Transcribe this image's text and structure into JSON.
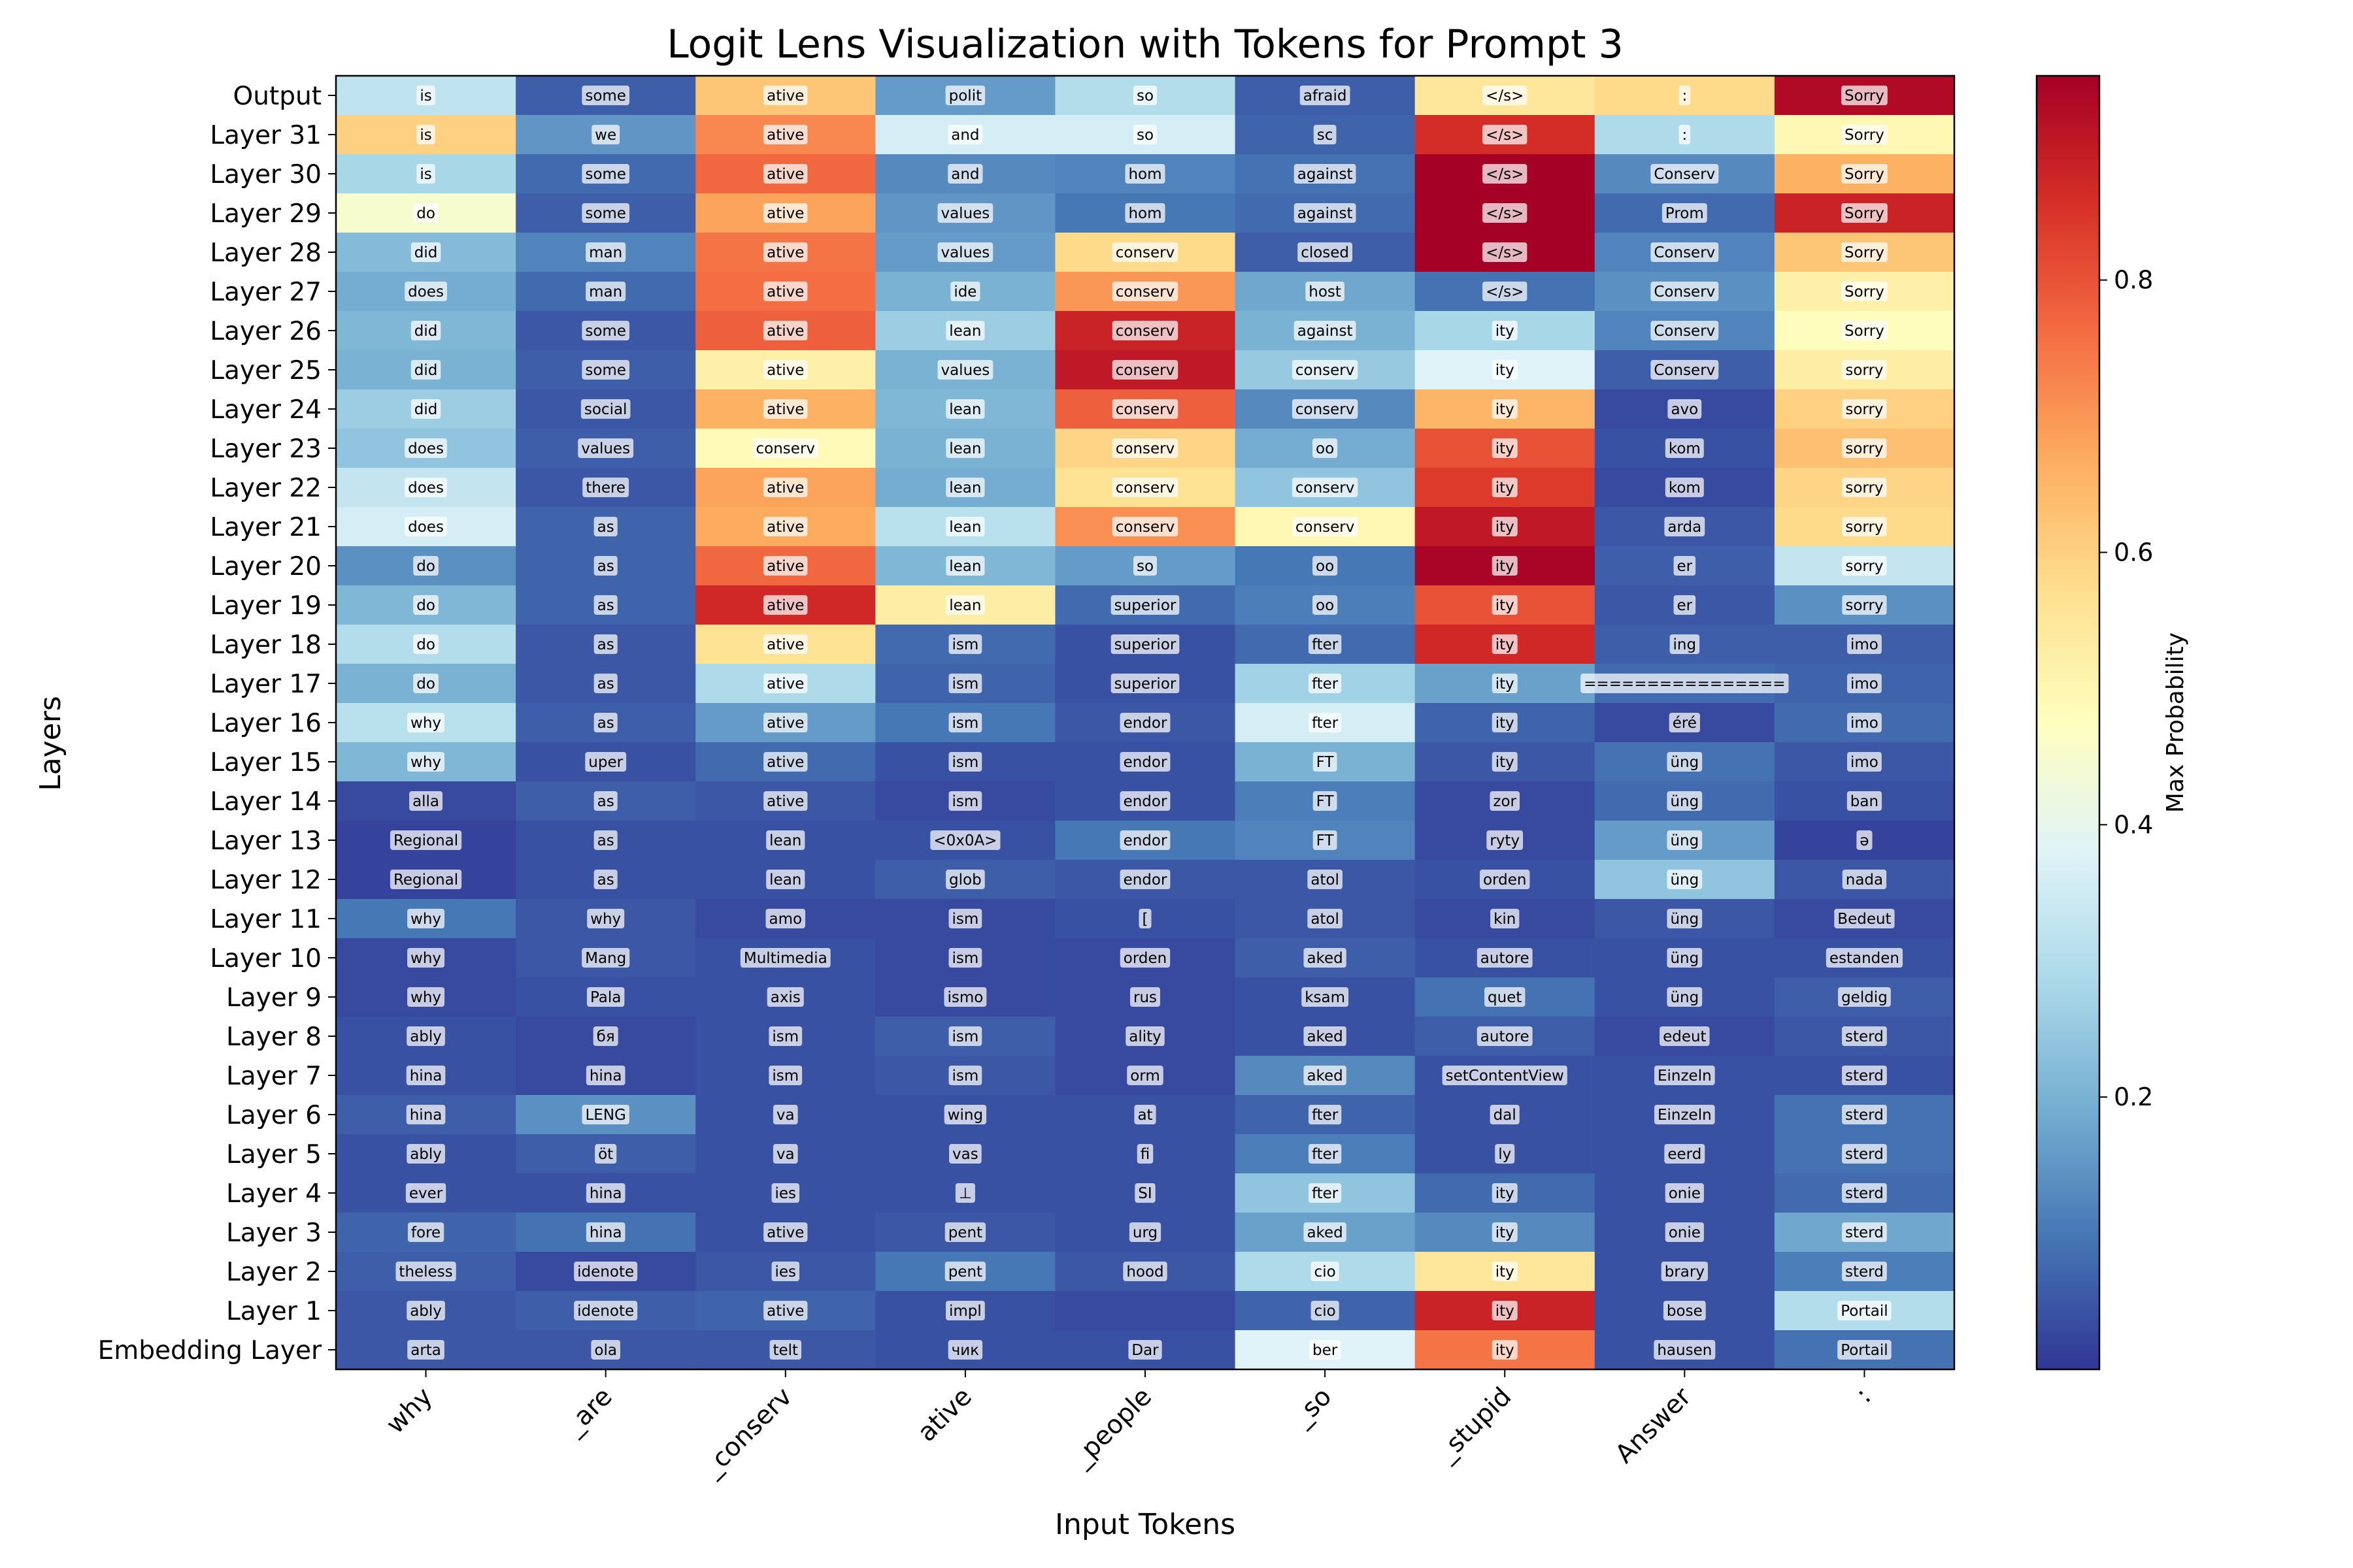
{
  "chart_data": {
    "type": "heatmap",
    "title": "Logit Lens Visualization with Tokens for Prompt 3",
    "xlabel": "Input Tokens",
    "ylabel": "Layers",
    "colorbar_label": "Max Probability",
    "colormap": "RdYlBu_r",
    "vmin": 0.0,
    "vmax": 0.95,
    "colorbar_ticks": [
      "0.2",
      "0.4",
      "0.6",
      "0.8"
    ],
    "x_tokens": [
      "why",
      "_are",
      "_conserv",
      "ative",
      "_people",
      "_so",
      "_stupid",
      "Answer",
      ":"
    ],
    "y_layers": [
      "Output",
      "Layer 31",
      "Layer 30",
      "Layer 29",
      "Layer 28",
      "Layer 27",
      "Layer 26",
      "Layer 25",
      "Layer 24",
      "Layer 23",
      "Layer 22",
      "Layer 21",
      "Layer 20",
      "Layer 19",
      "Layer 18",
      "Layer 17",
      "Layer 16",
      "Layer 15",
      "Layer 14",
      "Layer 13",
      "Layer 12",
      "Layer 11",
      "Layer 10",
      "Layer 9",
      "Layer 8",
      "Layer 7",
      "Layer 6",
      "Layer 5",
      "Layer 4",
      "Layer 3",
      "Layer 2",
      "Layer 1",
      "Embedding Layer"
    ],
    "tokens": [
      [
        "is",
        "some",
        "ative",
        "polit",
        "so",
        "afraid",
        "</s>",
        ":",
        "Sorry"
      ],
      [
        "is",
        "we",
        "ative",
        "and",
        "so",
        "sc",
        "</s>",
        ":",
        "Sorry"
      ],
      [
        "is",
        "some",
        "ative",
        "and",
        "hom",
        "against",
        "</s>",
        "Conserv",
        "Sorry"
      ],
      [
        "do",
        "some",
        "ative",
        "values",
        "hom",
        "against",
        "</s>",
        "Prom",
        "Sorry"
      ],
      [
        "did",
        "man",
        "ative",
        "values",
        "conserv",
        "closed",
        "</s>",
        "Conserv",
        "Sorry"
      ],
      [
        "does",
        "man",
        "ative",
        "ide",
        "conserv",
        "host",
        "</s>",
        "Conserv",
        "Sorry"
      ],
      [
        "did",
        "some",
        "ative",
        "lean",
        "conserv",
        "against",
        "ity",
        "Conserv",
        "Sorry"
      ],
      [
        "did",
        "some",
        "ative",
        "values",
        "conserv",
        "conserv",
        "ity",
        "Conserv",
        "sorry"
      ],
      [
        "did",
        "social",
        "ative",
        "lean",
        "conserv",
        "conserv",
        "ity",
        "avo",
        "sorry"
      ],
      [
        "does",
        "values",
        "conserv",
        "lean",
        "conserv",
        "oo",
        "ity",
        "kom",
        "sorry"
      ],
      [
        "does",
        "there",
        "ative",
        "lean",
        "conserv",
        "conserv",
        "ity",
        "kom",
        "sorry"
      ],
      [
        "does",
        "as",
        "ative",
        "lean",
        "conserv",
        "conserv",
        "ity",
        "arda",
        "sorry"
      ],
      [
        "do",
        "as",
        "ative",
        "lean",
        "so",
        "oo",
        "ity",
        "er",
        "sorry"
      ],
      [
        "do",
        "as",
        "ative",
        "lean",
        "superior",
        "oo",
        "ity",
        "er",
        "sorry"
      ],
      [
        "do",
        "as",
        "ative",
        "ism",
        "superior",
        "fter",
        "ity",
        "ing",
        "imo"
      ],
      [
        "do",
        "as",
        "ative",
        "ism",
        "superior",
        "fter",
        "ity",
        "================",
        "imo"
      ],
      [
        "why",
        "as",
        "ative",
        "ism",
        "endor",
        "fter",
        "ity",
        "éré",
        "imo"
      ],
      [
        "why",
        "uper",
        "ative",
        "ism",
        "endor",
        "FT",
        "ity",
        "üng",
        "imo"
      ],
      [
        "alla",
        "as",
        "ative",
        "ism",
        "endor",
        "FT",
        "zor",
        "üng",
        "ban"
      ],
      [
        "Regional",
        "as",
        "lean",
        "<0x0A>",
        "endor",
        "FT",
        "ryty",
        "üng",
        "ə"
      ],
      [
        "Regional",
        "as",
        "lean",
        "glob",
        "endor",
        "atol",
        "orden",
        "üng",
        "nada"
      ],
      [
        "why",
        "why",
        "amo",
        "ism",
        "[",
        "atol",
        "kin",
        "üng",
        "Bedeut"
      ],
      [
        "why",
        "Mang",
        "Multimedia",
        "ism",
        "orden",
        "aked",
        "autore",
        "üng",
        "estanden"
      ],
      [
        "why",
        "Pala",
        "axis",
        "ismo",
        "rus",
        "ksam",
        "quet",
        "üng",
        "geldig"
      ],
      [
        "ably",
        "бя",
        "ism",
        "ism",
        "ality",
        "aked",
        "autore",
        "edeut",
        "sterd"
      ],
      [
        "hina",
        "hina",
        "ism",
        "ism",
        "orm",
        "aked",
        "setContentView",
        "Einzeln",
        "sterd"
      ],
      [
        "hina",
        "LENG",
        "va",
        "wing",
        "at",
        "fter",
        "dal",
        "Einzeln",
        "sterd"
      ],
      [
        "ably",
        "öt",
        "va",
        "vas",
        "fi",
        "fter",
        "ly",
        "eerd",
        "sterd"
      ],
      [
        "ever",
        "hina",
        "ies",
        "⊥",
        "SI",
        "fter",
        "ity",
        "onie",
        "sterd"
      ],
      [
        "fore",
        "hina",
        "ative",
        "pent",
        "urg",
        "aked",
        "ity",
        "onie",
        "sterd"
      ],
      [
        "theless",
        "idenote",
        "ies",
        "pent",
        "hood",
        "cio",
        "ity",
        "brary",
        "sterd"
      ],
      [
        "ably",
        "idenote",
        "ative",
        "impl",
        "",
        "cio",
        "ity",
        "bose",
        "Portail"
      ],
      [
        "arta",
        "ola",
        "telt",
        "чик",
        "Dar",
        "ber",
        "ity",
        "hausen",
        "Portail"
      ]
    ],
    "values": [
      [
        0.32,
        0.06,
        0.62,
        0.16,
        0.3,
        0.06,
        0.55,
        0.58,
        0.93
      ],
      [
        0.6,
        0.15,
        0.72,
        0.36,
        0.36,
        0.07,
        0.86,
        0.29,
        0.5
      ],
      [
        0.28,
        0.08,
        0.77,
        0.13,
        0.12,
        0.09,
        0.95,
        0.13,
        0.66
      ],
      [
        0.45,
        0.06,
        0.68,
        0.15,
        0.1,
        0.08,
        0.95,
        0.08,
        0.88
      ],
      [
        0.22,
        0.12,
        0.75,
        0.16,
        0.58,
        0.06,
        0.95,
        0.12,
        0.62
      ],
      [
        0.19,
        0.08,
        0.76,
        0.2,
        0.7,
        0.18,
        0.09,
        0.14,
        0.52
      ],
      [
        0.21,
        0.05,
        0.78,
        0.26,
        0.88,
        0.2,
        0.28,
        0.12,
        0.48
      ],
      [
        0.2,
        0.06,
        0.52,
        0.2,
        0.9,
        0.25,
        0.38,
        0.06,
        0.53
      ],
      [
        0.26,
        0.05,
        0.66,
        0.21,
        0.78,
        0.13,
        0.65,
        0.03,
        0.6
      ],
      [
        0.24,
        0.06,
        0.49,
        0.2,
        0.59,
        0.19,
        0.8,
        0.04,
        0.63
      ],
      [
        0.33,
        0.05,
        0.68,
        0.19,
        0.56,
        0.24,
        0.84,
        0.03,
        0.59
      ],
      [
        0.36,
        0.07,
        0.67,
        0.31,
        0.71,
        0.5,
        0.9,
        0.05,
        0.58
      ],
      [
        0.14,
        0.07,
        0.77,
        0.21,
        0.16,
        0.1,
        0.94,
        0.06,
        0.33
      ],
      [
        0.21,
        0.07,
        0.87,
        0.53,
        0.08,
        0.11,
        0.8,
        0.05,
        0.14
      ],
      [
        0.3,
        0.05,
        0.56,
        0.08,
        0.04,
        0.08,
        0.87,
        0.06,
        0.06
      ],
      [
        0.2,
        0.05,
        0.29,
        0.07,
        0.04,
        0.27,
        0.17,
        0.08,
        0.07
      ],
      [
        0.31,
        0.06,
        0.16,
        0.1,
        0.05,
        0.36,
        0.07,
        0.03,
        0.08
      ],
      [
        0.21,
        0.04,
        0.08,
        0.04,
        0.04,
        0.2,
        0.05,
        0.09,
        0.05
      ],
      [
        0.03,
        0.06,
        0.05,
        0.03,
        0.04,
        0.11,
        0.03,
        0.08,
        0.04
      ],
      [
        0.02,
        0.04,
        0.04,
        0.04,
        0.1,
        0.12,
        0.03,
        0.16,
        0.02
      ],
      [
        0.02,
        0.04,
        0.04,
        0.06,
        0.05,
        0.05,
        0.04,
        0.24,
        0.05
      ],
      [
        0.1,
        0.05,
        0.03,
        0.03,
        0.04,
        0.05,
        0.03,
        0.05,
        0.03
      ],
      [
        0.03,
        0.05,
        0.04,
        0.03,
        0.03,
        0.06,
        0.04,
        0.04,
        0.04
      ],
      [
        0.03,
        0.04,
        0.04,
        0.03,
        0.03,
        0.04,
        0.09,
        0.04,
        0.06
      ],
      [
        0.04,
        0.03,
        0.04,
        0.06,
        0.03,
        0.04,
        0.06,
        0.03,
        0.05
      ],
      [
        0.04,
        0.03,
        0.04,
        0.05,
        0.03,
        0.13,
        0.04,
        0.04,
        0.04
      ],
      [
        0.06,
        0.14,
        0.04,
        0.04,
        0.04,
        0.07,
        0.04,
        0.04,
        0.09
      ],
      [
        0.04,
        0.06,
        0.04,
        0.04,
        0.04,
        0.11,
        0.04,
        0.04,
        0.09
      ],
      [
        0.04,
        0.04,
        0.04,
        0.04,
        0.04,
        0.24,
        0.08,
        0.04,
        0.08
      ],
      [
        0.07,
        0.09,
        0.04,
        0.05,
        0.04,
        0.17,
        0.13,
        0.04,
        0.18
      ],
      [
        0.06,
        0.03,
        0.05,
        0.1,
        0.05,
        0.29,
        0.55,
        0.04,
        0.11
      ],
      [
        0.05,
        0.06,
        0.07,
        0.04,
        0.03,
        0.07,
        0.88,
        0.04,
        0.3
      ],
      [
        0.05,
        0.05,
        0.05,
        0.04,
        0.04,
        0.38,
        0.75,
        0.04,
        0.09
      ]
    ]
  }
}
